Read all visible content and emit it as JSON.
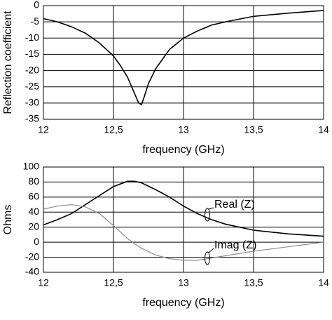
{
  "chart_data": [
    {
      "type": "line",
      "ylabel": "Reflection coefficient",
      "xlabel": "frequency (GHz)",
      "x": [
        12,
        12.1,
        12.2,
        12.3,
        12.4,
        12.5,
        12.55,
        12.6,
        12.65,
        12.68,
        12.7,
        12.72,
        12.75,
        12.8,
        12.9,
        13,
        13.1,
        13.2,
        13.3,
        13.5,
        13.75,
        14
      ],
      "series": [
        {
          "color": "#000000",
          "values": [
            -4,
            -5,
            -6.5,
            -8.5,
            -11.5,
            -15.5,
            -18.5,
            -22,
            -27,
            -30,
            -30.5,
            -28,
            -24,
            -19.5,
            -13.5,
            -10,
            -7.8,
            -6,
            -5,
            -3.3,
            -2.3,
            -1.5
          ]
        }
      ],
      "xlim": [
        12,
        14
      ],
      "ylim": [
        -35,
        0
      ],
      "xticks": [
        12,
        {
          "value": 12.5,
          "label": "12,5"
        },
        13,
        {
          "value": 13.5,
          "label": "13,5"
        },
        14
      ],
      "yticks": [
        0,
        -5,
        -10,
        -15,
        -20,
        -25,
        -30,
        -35
      ],
      "grid": true
    },
    {
      "type": "line",
      "ylabel": "Ohms",
      "xlabel": "frequency (GHz)",
      "x": [
        12,
        12.1,
        12.2,
        12.3,
        12.4,
        12.5,
        12.6,
        12.65,
        12.7,
        12.8,
        12.9,
        13,
        13.1,
        13.2,
        13.3,
        13.5,
        13.75,
        14
      ],
      "series": [
        {
          "name": "Real (Z)",
          "color": "#000000",
          "values": [
            23,
            30,
            38,
            50,
            62,
            74,
            81,
            81,
            79,
            70,
            60,
            48,
            38,
            30,
            24,
            16,
            11,
            8
          ]
        },
        {
          "name": "Imag (Z)",
          "color": "#8c8c8c",
          "values": [
            44,
            48,
            50,
            47,
            38,
            22,
            5,
            -2,
            -8,
            -17,
            -22,
            -24,
            -24,
            -21,
            -18,
            -12,
            -6,
            0
          ]
        }
      ],
      "xlim": [
        12,
        14
      ],
      "ylim": [
        -40,
        100
      ],
      "xticks": [
        12,
        {
          "value": 12.5,
          "label": "12,5"
        },
        13,
        {
          "value": 13.5,
          "label": "13,5"
        },
        14
      ],
      "yticks": [
        100,
        80,
        60,
        40,
        20,
        0,
        -20,
        -40
      ],
      "grid": true
    }
  ]
}
